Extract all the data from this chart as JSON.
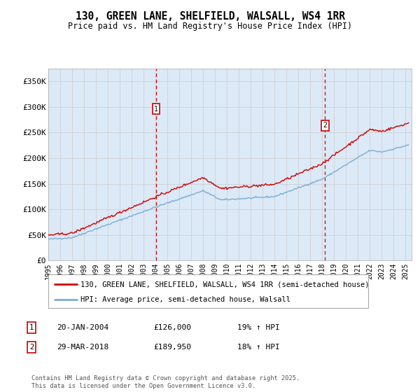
{
  "title": "130, GREEN LANE, SHELFIELD, WALSALL, WS4 1RR",
  "subtitle": "Price paid vs. HM Land Registry's House Price Index (HPI)",
  "legend_line1": "130, GREEN LANE, SHELFIELD, WALSALL, WS4 1RR (semi-detached house)",
  "legend_line2": "HPI: Average price, semi-detached house, Walsall",
  "annotation1_label": "1",
  "annotation1_date": "20-JAN-2004",
  "annotation1_price": "£126,000",
  "annotation1_hpi": "19% ↑ HPI",
  "annotation2_label": "2",
  "annotation2_date": "29-MAR-2018",
  "annotation2_price": "£189,950",
  "annotation2_hpi": "18% ↑ HPI",
  "footer": "Contains HM Land Registry data © Crown copyright and database right 2025.\nThis data is licensed under the Open Government Licence v3.0.",
  "line_color_property": "#cc0000",
  "line_color_hpi": "#7bafd4",
  "annotation_color": "#cc0000",
  "background_color": "#dce9f7",
  "plot_bg_color": "#ffffff",
  "grid_color": "#cccccc",
  "ylim": [
    0,
    375000
  ],
  "yticks": [
    0,
    50000,
    100000,
    150000,
    200000,
    250000,
    300000,
    350000
  ],
  "ytick_labels": [
    "£0",
    "£50K",
    "£100K",
    "£150K",
    "£200K",
    "£250K",
    "£300K",
    "£350K"
  ],
  "sale1_date_num": 2004.05,
  "sale1_price": 126000,
  "sale2_date_num": 2018.24,
  "sale2_price": 189950,
  "xlim_start": 1995.0,
  "xlim_end": 2025.5
}
